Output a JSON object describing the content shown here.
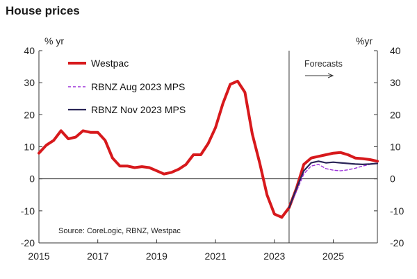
{
  "chart_data": {
    "type": "line",
    "title": "House prices",
    "left_unit": "% yr",
    "right_unit": "%yr",
    "ylim": [
      -20,
      40
    ],
    "yticks": [
      "40",
      "30",
      "20",
      "10",
      "0",
      "-10",
      "-20"
    ],
    "xlim": [
      2015,
      2026.5
    ],
    "xticks": [
      "2015",
      "2017",
      "2019",
      "2021",
      "2023",
      "2025"
    ],
    "forecast_start": 2023.5,
    "forecast_label": "Forecasts",
    "forecast_arrow": "→",
    "source": "Source: CoreLogic, RBNZ, Westpac",
    "legend_placement": "top-left",
    "colors": {
      "westpac": "#d7191c",
      "aug": "#9b30d9",
      "nov": "#2a2557",
      "axis": "#333333"
    },
    "series": [
      {
        "name": "Westpac",
        "style": "solid-thick",
        "x": [
          2015,
          2015.25,
          2015.5,
          2015.75,
          2016,
          2016.25,
          2016.5,
          2016.75,
          2017,
          2017.25,
          2017.5,
          2017.75,
          2018,
          2018.25,
          2018.5,
          2018.75,
          2019,
          2019.25,
          2019.5,
          2019.75,
          2020,
          2020.25,
          2020.5,
          2020.75,
          2021,
          2021.25,
          2021.5,
          2021.75,
          2022,
          2022.25,
          2022.5,
          2022.75,
          2023,
          2023.25,
          2023.5,
          2023.75,
          2024,
          2024.25,
          2024.5,
          2024.75,
          2025,
          2025.25,
          2025.5,
          2025.75,
          2026,
          2026.25,
          2026.5
        ],
        "y": [
          8,
          10.5,
          12,
          15,
          12.5,
          13,
          15,
          14.5,
          14.5,
          12,
          6.5,
          4,
          4,
          3.5,
          3.8,
          3.5,
          2.5,
          1.5,
          2,
          3,
          4.5,
          7.5,
          7.5,
          11,
          16,
          23.5,
          29.5,
          30.5,
          27,
          14,
          5,
          -5,
          -11,
          -12,
          -9,
          -3,
          4.5,
          6.5,
          7,
          7.5,
          8,
          8.2,
          7.5,
          6.5,
          6.3,
          6,
          5.5
        ]
      },
      {
        "name": "RBNZ Aug 2023 MPS",
        "style": "dashed",
        "x": [
          2023.5,
          2023.75,
          2024,
          2024.25,
          2024.5,
          2024.75,
          2025,
          2025.25,
          2025.5,
          2025.75,
          2026,
          2026.25,
          2026.5
        ],
        "y": [
          -9,
          -4,
          1.5,
          4,
          4.5,
          3.2,
          2.7,
          2.5,
          2.8,
          3.3,
          4,
          4.5,
          5
        ]
      },
      {
        "name": "RBNZ Nov 2023 MPS",
        "style": "solid",
        "x": [
          2023.5,
          2023.75,
          2024,
          2024.25,
          2024.5,
          2024.75,
          2025,
          2025.25,
          2025.5,
          2025.75,
          2026,
          2026.25,
          2026.5
        ],
        "y": [
          -9,
          -3,
          2.5,
          5,
          5.5,
          5,
          5.2,
          5,
          4.8,
          4.6,
          4.5,
          4.6,
          4.8
        ]
      }
    ]
  }
}
